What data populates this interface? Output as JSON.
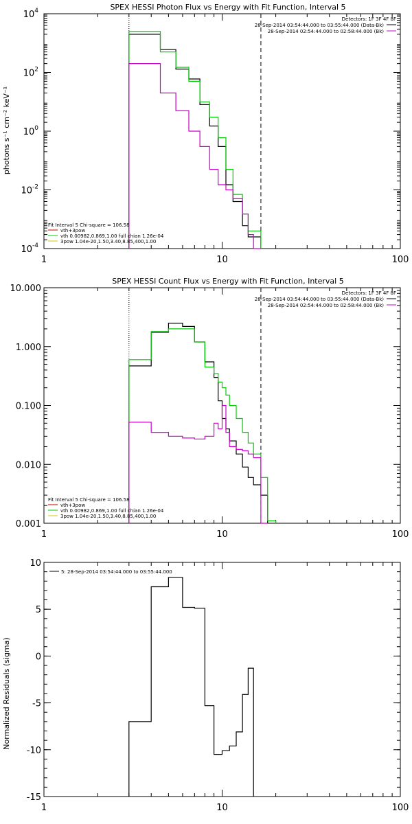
{
  "chart_data": [
    {
      "type": "line",
      "title": "SPEX HESSI Photon Flux vs Energy with Fit Function, Interval 5",
      "xlabel": "",
      "ylabel": "photons s⁻¹ cm⁻² keV⁻¹",
      "x_scale": "log",
      "y_scale": "log",
      "xlim": [
        1,
        100
      ],
      "ylim": [
        0.0001,
        10000
      ],
      "x_ticks": [
        {
          "v": 1,
          "label": "1"
        },
        {
          "v": 10,
          "label": "10"
        },
        {
          "v": 100,
          "label": "100"
        }
      ],
      "y_ticks": [
        {
          "v": 0.0001,
          "base": "10",
          "exp": "-4"
        },
        {
          "v": 0.01,
          "base": "10",
          "exp": "-2"
        },
        {
          "v": 1,
          "base": "10",
          "exp": "0"
        },
        {
          "v": 100,
          "base": "10",
          "exp": "2"
        },
        {
          "v": 10000,
          "base": "10",
          "exp": "4"
        }
      ],
      "vlines": [
        {
          "x": 3,
          "style": "dotted"
        },
        {
          "x": 16.5,
          "style": "dashed"
        }
      ],
      "legend_top": {
        "title": "Detectors: 1F 3F 4F 8F",
        "entries": [
          {
            "text": "28-Sep-2014 03:54:44.000 to 03:55:44.000 (Data-Bk)",
            "color": "#000000"
          },
          {
            "text": "28-Sep-2014 02:54:44.000 to 02:58:44.000 (Bk)",
            "color": "#cc00cc"
          }
        ]
      },
      "legend_bottom": {
        "entries": [
          {
            "text": "Fit Interval 5   Chi-square = 106.58",
            "color": null
          },
          {
            "text": "vth+3pow",
            "color": "#cc0000"
          },
          {
            "text": "vth 0.00982,0.869,1.00  full chian 1.26e-04",
            "color": "#00cc00"
          },
          {
            "text": "3pow 1.04e-20,1.50,3.40,8.85,400,1.00",
            "color": "#cccc00"
          }
        ]
      },
      "bin_edges": [
        3,
        3.5,
        4,
        4.5,
        5,
        5.5,
        6,
        6.5,
        7,
        7.5,
        8,
        8.5,
        9,
        9.5,
        10,
        10.5,
        11,
        11.5,
        12,
        13,
        14,
        15,
        16.5
      ],
      "series": [
        {
          "name": "Data-Bk",
          "color": "#000000",
          "values": [
            2000,
            2000,
            2000,
            600,
            600,
            130,
            130,
            60,
            60,
            8,
            8,
            1.5,
            1.5,
            0.3,
            0.3,
            0.015,
            0.015,
            0.004,
            0.004,
            0.0006,
            0.00025,
            0.00025
          ]
        },
        {
          "name": "vth+3pow",
          "color": "#00cc00",
          "values": [
            2500,
            2500,
            2500,
            500,
            500,
            150,
            150,
            50,
            50,
            10,
            10,
            3,
            3,
            0.6,
            0.6,
            0.05,
            0.05,
            0.007,
            0.007,
            0.0015,
            0.0004,
            0.0004
          ]
        },
        {
          "name": "Bk",
          "color": "#cc00cc",
          "values": [
            200,
            200,
            200,
            20,
            20,
            5,
            5,
            1,
            1,
            0.3,
            0.3,
            0.05,
            0.05,
            0.015,
            0.015,
            0.01,
            0.01,
            0.005,
            0.005,
            0.0015,
            0.0003,
            0.0001
          ]
        }
      ]
    },
    {
      "type": "line",
      "title": "SPEX HESSI Count Flux vs Energy with Fit Function, Interval 5",
      "xlabel": "",
      "ylabel": "",
      "x_scale": "log",
      "y_scale": "log",
      "xlim": [
        1,
        100
      ],
      "ylim": [
        0.001,
        10
      ],
      "x_ticks": [
        {
          "v": 1,
          "label": "1"
        },
        {
          "v": 10,
          "label": "10"
        },
        {
          "v": 100,
          "label": "100"
        }
      ],
      "y_ticks": [
        {
          "v": 0.001,
          "label": "0.001"
        },
        {
          "v": 0.01,
          "label": "0.010"
        },
        {
          "v": 0.1,
          "label": "0.100"
        },
        {
          "v": 1,
          "label": "1.000"
        },
        {
          "v": 10,
          "label": "10.000"
        }
      ],
      "vlines": [
        {
          "x": 3,
          "style": "dotted"
        },
        {
          "x": 16.5,
          "style": "dashed"
        }
      ],
      "legend_top": {
        "title": "Detectors: 1F 3F 4F 8F",
        "entries": [
          {
            "text": "28-Sep-2014 03:54:44.000 to 03:55:44.000 (Data-Bk)",
            "color": "#000000"
          },
          {
            "text": "28-Sep-2014 02:54:44.000 to 02:58:44.000 (Bk)",
            "color": "#cc00cc"
          }
        ]
      },
      "legend_bottom": {
        "entries": [
          {
            "text": "Fit Interval 5   Chi-square = 106.58",
            "color": null
          },
          {
            "text": "vth+3pow",
            "color": "#cc0000"
          },
          {
            "text": "vth 0.00982,0.869,1.00  full chian 1.26e-04",
            "color": "#00cc00"
          },
          {
            "text": "3pow 1.04e-20,1.50,3.40,8.85,400,1.00",
            "color": "#cccc00"
          }
        ]
      },
      "bin_edges": [
        3,
        4,
        5,
        6,
        7,
        8,
        9,
        9.5,
        10,
        10.5,
        11,
        12,
        13,
        14,
        15,
        16.5,
        18,
        20
      ],
      "series": [
        {
          "name": "Data-Bk",
          "color": "#000000",
          "values": [
            0.47,
            1.75,
            2.5,
            2.2,
            1.2,
            0.55,
            0.3,
            0.12,
            0.06,
            0.04,
            0.025,
            0.015,
            0.009,
            0.006,
            0.0045,
            0.003,
            null
          ]
        },
        {
          "name": "vth+3pow",
          "color": "#00cc00",
          "values": [
            0.6,
            1.8,
            2.0,
            2.0,
            1.2,
            0.45,
            0.35,
            0.25,
            0.2,
            0.15,
            0.1,
            0.06,
            0.035,
            0.023,
            0.015,
            0.006,
            0.0011
          ]
        },
        {
          "name": "Bk",
          "color": "#cc00cc",
          "values": [
            0.052,
            0.035,
            0.03,
            0.028,
            0.027,
            0.03,
            0.05,
            0.04,
            0.1,
            0.035,
            0.02,
            0.018,
            0.017,
            0.015,
            0.013,
            0.0008,
            null
          ]
        }
      ]
    },
    {
      "type": "line",
      "title": "",
      "xlabel": "",
      "ylabel": "Normalized Residuals (sigma)",
      "x_scale": "log",
      "y_scale": "linear",
      "xlim": [
        1,
        100
      ],
      "ylim": [
        -15,
        10
      ],
      "x_ticks": [
        {
          "v": 1,
          "label": "1"
        },
        {
          "v": 10,
          "label": "10"
        },
        {
          "v": 100,
          "label": "100"
        }
      ],
      "y_ticks": [
        {
          "v": -15,
          "label": "-15"
        },
        {
          "v": -10,
          "label": "-10"
        },
        {
          "v": -5,
          "label": "-5"
        },
        {
          "v": 0,
          "label": "0"
        },
        {
          "v": 5,
          "label": "5"
        },
        {
          "v": 10,
          "label": "10"
        }
      ],
      "vlines": [],
      "legend_top": {
        "entries": [
          {
            "text": "5: 28-Sep-2014 03:54:44.000 to 03:55:44.000",
            "color": "#000000"
          }
        ]
      },
      "bin_edges": [
        3,
        4,
        5,
        6,
        7,
        8,
        9,
        10,
        11,
        12,
        13,
        14,
        15,
        16.5
      ],
      "series": [
        {
          "name": "",
          "color": "#000000",
          "values": [
            -7,
            7.4,
            8.4,
            5.2,
            5.1,
            -5.3,
            -10.5,
            -10.1,
            -9.6,
            -8.1,
            -4.1,
            -1.3,
            null
          ]
        }
      ]
    }
  ]
}
